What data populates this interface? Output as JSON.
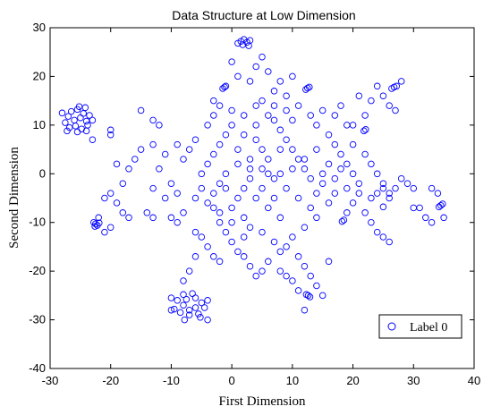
{
  "chart_data": {
    "type": "scatter",
    "title": "Data Structure at Low Dimension",
    "xlabel": "First Dimension",
    "ylabel": "Second Dimension",
    "xlim": [
      -30,
      40
    ],
    "ylim": [
      -40,
      30
    ],
    "xticks": [
      -30,
      -20,
      -10,
      0,
      10,
      20,
      30,
      40
    ],
    "yticks": [
      -40,
      -30,
      -20,
      -10,
      0,
      10,
      20,
      30
    ],
    "grid": false,
    "legend_position": "bottom-right",
    "marker_color": "#0000ff",
    "marker": "open-circle",
    "series": [
      {
        "name": "Label 0",
        "points": [
          [
            -28,
            12.5
          ],
          [
            -27,
            11.8
          ],
          [
            -26.5,
            12.8
          ],
          [
            -25.5,
            13.2
          ],
          [
            -24.5,
            12.4
          ],
          [
            -27.5,
            10.5
          ],
          [
            -26,
            11
          ],
          [
            -25,
            11.5
          ],
          [
            -24,
            10.8
          ],
          [
            -23.5,
            12
          ],
          [
            -26.8,
            9.5
          ],
          [
            -25.8,
            9.8
          ],
          [
            -24.8,
            9.2
          ],
          [
            -23.8,
            10
          ],
          [
            -25.2,
            13.8
          ],
          [
            -24.2,
            13.6
          ],
          [
            -23,
            11
          ],
          [
            -27.2,
            8.8
          ],
          [
            -25.5,
            8.6
          ],
          [
            -24,
            8.8
          ],
          [
            -22.5,
            -10.3
          ],
          [
            -22.8,
            -10
          ],
          [
            -22.2,
            -10.6
          ],
          [
            -21.9,
            -10.1
          ],
          [
            -22.6,
            -10.8
          ],
          [
            -8,
            -27
          ],
          [
            -7,
            -28
          ],
          [
            -6,
            -27.5
          ],
          [
            -9,
            -26
          ],
          [
            -7.5,
            -25.8
          ],
          [
            -6,
            -25.5
          ],
          [
            -5,
            -26.5
          ],
          [
            -8.5,
            -28.5
          ],
          [
            -7,
            -29
          ],
          [
            -5.5,
            -28.8
          ],
          [
            -4.5,
            -27.5
          ],
          [
            -9.5,
            -27.8
          ],
          [
            -8,
            -24.8
          ],
          [
            -6.5,
            -24.6
          ],
          [
            -5.2,
            -29.5
          ],
          [
            -7.8,
            -30
          ],
          [
            -10,
            -25.5
          ],
          [
            -4,
            -26
          ],
          [
            1.5,
            27.2
          ],
          [
            2,
            27.6
          ],
          [
            2.5,
            27
          ],
          [
            1,
            26.8
          ],
          [
            3,
            27.4
          ],
          [
            1.8,
            26.5
          ],
          [
            2.8,
            26.3
          ],
          [
            12.5,
            17.6
          ],
          [
            12.2,
            17.3
          ],
          [
            12.8,
            17.8
          ],
          [
            26.8,
            17.8
          ],
          [
            27.2,
            18
          ],
          [
            26.4,
            17.5
          ],
          [
            -1.5,
            17.5
          ],
          [
            -1.2,
            17.8
          ],
          [
            21.8,
            8.8
          ],
          [
            22.1,
            9.1
          ],
          [
            18.2,
            -9.8
          ],
          [
            18.5,
            -9.5
          ],
          [
            34.5,
            -6.5
          ],
          [
            34.8,
            -6.2
          ],
          [
            34.2,
            -6.8
          ],
          [
            12.6,
            -25
          ],
          [
            12.9,
            -25.3
          ],
          [
            12.3,
            -24.8
          ],
          [
            26,
            -14
          ],
          [
            25,
            -6.8
          ],
          [
            30,
            -7
          ],
          [
            -23,
            7
          ],
          [
            -20,
            8
          ],
          [
            -20,
            9
          ],
          [
            -19,
            2
          ],
          [
            -18,
            -2
          ],
          [
            -20,
            -4
          ],
          [
            -21,
            -5
          ],
          [
            -19,
            -6
          ],
          [
            -18,
            -8
          ],
          [
            -17,
            -9
          ],
          [
            -20,
            -11
          ],
          [
            -21,
            -12
          ],
          [
            -22,
            -9
          ],
          [
            -17,
            1
          ],
          [
            -16,
            3
          ],
          [
            -15,
            5
          ],
          [
            -15,
            13
          ],
          [
            -13,
            11
          ],
          [
            -12,
            10
          ],
          [
            -13,
            6
          ],
          [
            -11,
            4
          ],
          [
            -12,
            1
          ],
          [
            -13,
            -3
          ],
          [
            -11,
            -5
          ],
          [
            -14,
            -8
          ],
          [
            -13,
            -9
          ],
          [
            -10,
            -2
          ],
          [
            -9,
            -4
          ],
          [
            -10,
            -9
          ],
          [
            -9,
            -10
          ],
          [
            -8,
            -8
          ],
          [
            -6,
            -12
          ],
          [
            -5,
            -13
          ],
          [
            -4,
            -15
          ],
          [
            -3,
            -17
          ],
          [
            -2,
            -18
          ],
          [
            -6,
            -17
          ],
          [
            -7,
            -20
          ],
          [
            -8,
            -22
          ],
          [
            -10,
            -28
          ],
          [
            -4,
            -30
          ],
          [
            -5,
            0
          ],
          [
            -4,
            2
          ],
          [
            -3,
            4
          ],
          [
            -2,
            6
          ],
          [
            -1,
            8
          ],
          [
            0,
            10
          ],
          [
            -3,
            12
          ],
          [
            -2,
            14
          ],
          [
            -4,
            10
          ],
          [
            -6,
            7
          ],
          [
            -7,
            5
          ],
          [
            -8,
            3
          ],
          [
            -9,
            6
          ],
          [
            -5,
            -3
          ],
          [
            -6,
            -5
          ],
          [
            -3,
            -7
          ],
          [
            -2,
            -10
          ],
          [
            -1,
            -12
          ],
          [
            0,
            -14
          ],
          [
            1,
            -16
          ],
          [
            2,
            -17
          ],
          [
            3,
            -19
          ],
          [
            4,
            -21
          ],
          [
            5,
            -20
          ],
          [
            2,
            -13
          ],
          [
            0,
            23
          ],
          [
            1,
            20
          ],
          [
            3,
            19
          ],
          [
            4,
            22
          ],
          [
            5,
            24
          ],
          [
            6,
            21
          ],
          [
            8,
            19
          ],
          [
            9,
            16
          ],
          [
            7,
            14
          ],
          [
            6,
            12
          ],
          [
            4,
            10
          ],
          [
            2,
            8
          ],
          [
            1,
            5
          ],
          [
            3,
            3
          ],
          [
            5,
            1
          ],
          [
            7,
            -1
          ],
          [
            9,
            -3
          ],
          [
            11,
            -5
          ],
          [
            13,
            -7
          ],
          [
            14,
            -9
          ],
          [
            12,
            -11
          ],
          [
            10,
            -13
          ],
          [
            9,
            -15
          ],
          [
            11,
            -17
          ],
          [
            12,
            -19
          ],
          [
            13,
            -21
          ],
          [
            11,
            -24
          ],
          [
            10,
            -22
          ],
          [
            14,
            -23
          ],
          [
            15,
            -25
          ],
          [
            8,
            -20
          ],
          [
            9,
            -21
          ],
          [
            12,
            -28
          ],
          [
            16,
            -18
          ],
          [
            10,
            20
          ],
          [
            11,
            14
          ],
          [
            13,
            12
          ],
          [
            14,
            10
          ],
          [
            16,
            8
          ],
          [
            17,
            6
          ],
          [
            18,
            4
          ],
          [
            19,
            2
          ],
          [
            20,
            0
          ],
          [
            21,
            -2
          ],
          [
            15,
            13
          ],
          [
            17,
            12
          ],
          [
            18,
            14
          ],
          [
            19,
            10
          ],
          [
            20,
            6
          ],
          [
            22,
            4
          ],
          [
            23,
            2
          ],
          [
            24,
            0
          ],
          [
            25,
            -2
          ],
          [
            26,
            -4
          ],
          [
            27,
            -3
          ],
          [
            28,
            -1
          ],
          [
            29,
            -2
          ],
          [
            30,
            -3
          ],
          [
            31,
            -7
          ],
          [
            32,
            -9
          ],
          [
            33,
            -10
          ],
          [
            34,
            -4
          ],
          [
            33,
            -3
          ],
          [
            35,
            -9
          ],
          [
            24,
            18
          ],
          [
            25,
            16
          ],
          [
            26,
            14
          ],
          [
            27,
            13
          ],
          [
            28,
            19
          ],
          [
            23,
            15
          ],
          [
            22,
            12
          ],
          [
            20,
            10
          ],
          [
            21,
            16
          ],
          [
            19,
            -8
          ],
          [
            20,
            -6
          ],
          [
            21,
            -4
          ],
          [
            22,
            -8
          ],
          [
            23,
            -10
          ],
          [
            24,
            -12
          ],
          [
            25,
            -13
          ],
          [
            23,
            -5
          ],
          [
            24,
            -4
          ],
          [
            25,
            -3
          ],
          [
            26,
            -5
          ],
          [
            16,
            -6
          ],
          [
            17,
            -4
          ],
          [
            15,
            -2
          ],
          [
            14,
            -4
          ],
          [
            13,
            -1
          ],
          [
            12,
            1
          ],
          [
            11,
            3
          ],
          [
            10,
            5
          ],
          [
            9,
            7
          ],
          [
            8,
            9
          ],
          [
            7,
            11
          ],
          [
            6,
            3
          ],
          [
            5,
            5
          ],
          [
            4,
            7
          ],
          [
            3,
            -1
          ],
          [
            2,
            -3
          ],
          [
            1,
            -5
          ],
          [
            0,
            -7
          ],
          [
            -1,
            -3
          ],
          [
            4,
            -5
          ],
          [
            6,
            -7
          ],
          [
            8,
            -9
          ],
          [
            7,
            -5
          ],
          [
            8,
            0
          ],
          [
            10,
            1
          ],
          [
            12,
            3
          ],
          [
            14,
            5
          ],
          [
            15,
            0
          ],
          [
            16,
            2
          ],
          [
            17,
            -1
          ],
          [
            18,
            1
          ],
          [
            19,
            -3
          ],
          [
            -3,
            15
          ],
          [
            -1,
            18
          ],
          [
            0,
            13
          ],
          [
            2,
            12
          ],
          [
            4,
            14
          ],
          [
            5,
            15
          ],
          [
            7,
            17
          ],
          [
            9,
            13
          ],
          [
            10,
            11
          ],
          [
            8,
            5
          ],
          [
            6,
            0
          ],
          [
            5,
            -3
          ],
          [
            3,
            1
          ],
          [
            1,
            2
          ],
          [
            -1,
            0
          ],
          [
            -2,
            -2
          ],
          [
            -3,
            -4
          ],
          [
            -4,
            -6
          ],
          [
            -2,
            -8
          ],
          [
            0,
            -10
          ],
          [
            2,
            -9
          ],
          [
            3,
            -11
          ],
          [
            5,
            -12
          ],
          [
            7,
            -14
          ],
          [
            8,
            -16
          ],
          [
            6,
            -18
          ]
        ]
      }
    ]
  }
}
